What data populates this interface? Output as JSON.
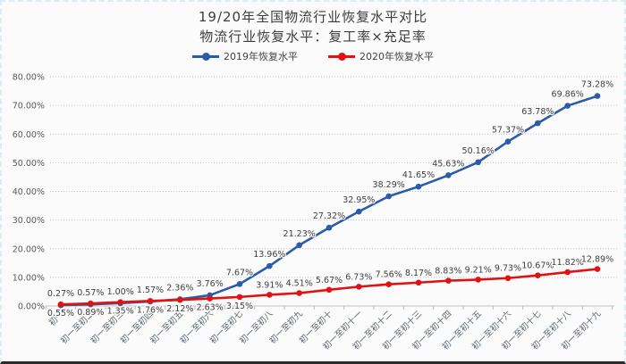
{
  "chart": {
    "title": "19/20年全国物流行业恢复水平对比",
    "subtitle": "物流行业恢复水平：复工率×充足率"
  },
  "chart_data": {
    "type": "line",
    "title": "19/20年全国物流行业恢复水平对比",
    "subtitle": "物流行业恢复水平：复工率×充足率",
    "legend_position": "top",
    "grid": "horizontal dotted",
    "ylim": [
      0,
      80
    ],
    "y_ticks": [
      "0.00%",
      "10.00%",
      "20.00%",
      "30.00%",
      "40.00%",
      "50.00%",
      "60.00%",
      "70.00%",
      "80.00%"
    ],
    "categories": [
      "初一",
      "初一至初二",
      "初一至初三",
      "初一至初四",
      "初一至初五",
      "初一至初六",
      "初一至初七",
      "初一至初八",
      "初一至初九",
      "初一至初十",
      "初一至初十一",
      "初一至初十二",
      "初一至初十三",
      "初一至初十四",
      "初一至初十五",
      "初一至初十六",
      "初一至初十七",
      "初一至初十八",
      "初一至初十九"
    ],
    "series": [
      {
        "name": "2019年恢复水平",
        "color": "#2a5caa",
        "label_placement": "above",
        "labels_below_first_n": 0,
        "values": [
          0.27,
          0.57,
          1.0,
          1.57,
          2.36,
          3.76,
          7.67,
          13.96,
          21.23,
          27.32,
          32.95,
          38.29,
          41.65,
          45.63,
          50.16,
          57.37,
          63.78,
          69.86,
          73.28
        ]
      },
      {
        "name": "2020年恢复水平",
        "color": "#e01212",
        "label_placement": "below_then_above",
        "labels_below_first_n": 7,
        "values": [
          0.55,
          0.89,
          1.35,
          1.76,
          2.12,
          2.63,
          3.15,
          3.91,
          4.51,
          5.67,
          6.73,
          7.56,
          8.17,
          8.83,
          9.21,
          9.73,
          10.67,
          11.82,
          12.89
        ]
      }
    ]
  },
  "colors": {
    "grid": "#b9c6d2",
    "axis": "#bfbfbf",
    "tick_label": "#595959",
    "x_label": "#5a6570",
    "data_label": "#404040",
    "background": "#fbfbfb"
  }
}
